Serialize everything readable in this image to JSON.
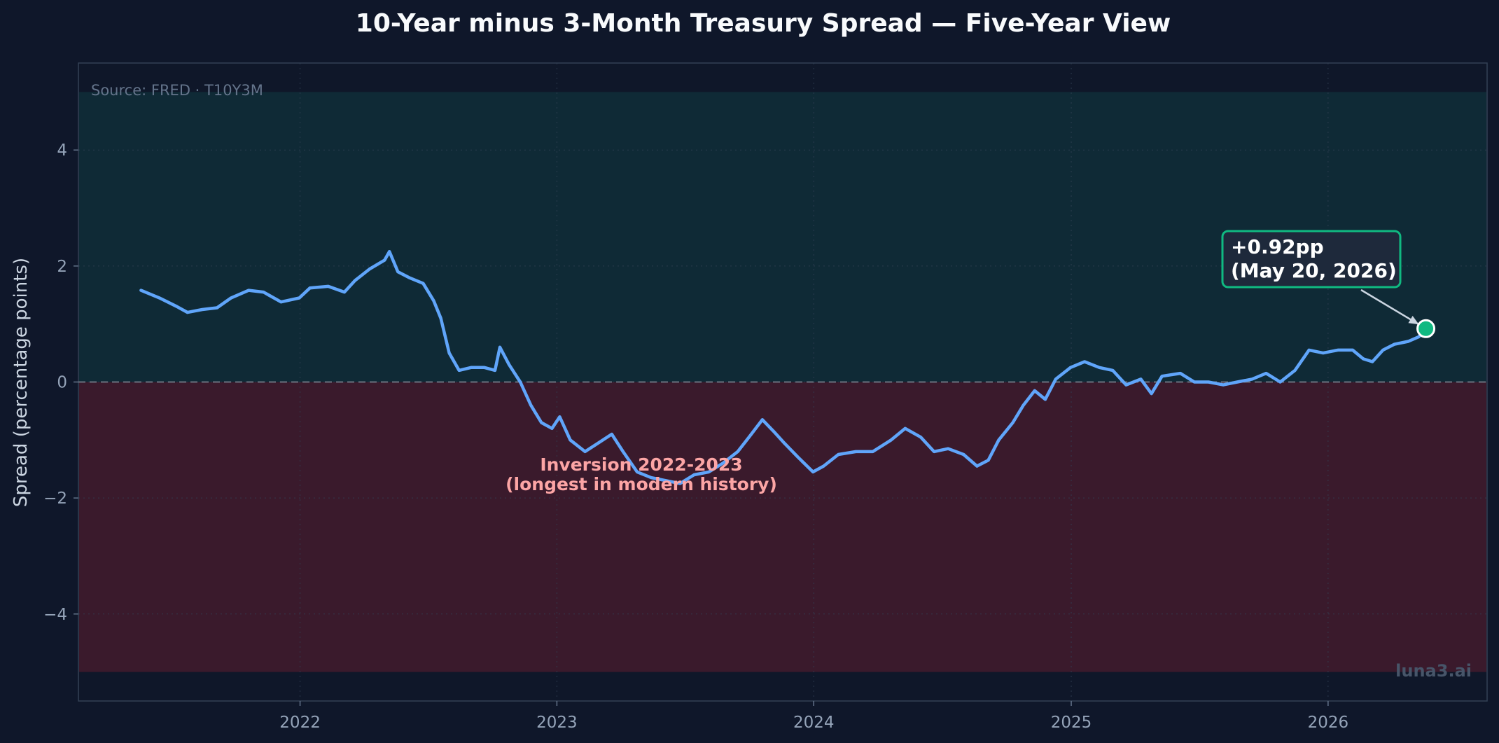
{
  "chart_data": {
    "type": "line",
    "title": "10-Year minus 3-Month Treasury Spread — Five-Year View",
    "xlabel": "",
    "ylabel": "Spread (percentage points)",
    "source": "Source: FRED · T10Y3M",
    "watermark": "luna3.ai",
    "xlim": [
      "2021-02-20",
      "2026-08-15"
    ],
    "ylim": [
      -5.5,
      5.5
    ],
    "x_ticks": [
      "2022",
      "2023",
      "2024",
      "2025",
      "2026"
    ],
    "y_ticks": [
      4,
      2,
      0,
      -2,
      -4
    ],
    "y_tick_labels": [
      "4",
      "2",
      "0",
      "−2",
      "−4"
    ],
    "grid": true,
    "zero_line": 0,
    "bands": [
      {
        "from": 0,
        "to": 5,
        "color": "#0f2a36"
      },
      {
        "from": -5,
        "to": 0,
        "color": "#3a1a2c"
      }
    ],
    "annotations": {
      "inversion_line1": "Inversion 2022-2023",
      "inversion_line2": "(longest in modern history)",
      "inversion_x": "2023-05-01",
      "inversion_y": -1.55,
      "latest_line1": "+0.92pp",
      "latest_line2": "(May 20, 2026)"
    },
    "latest_point": {
      "x": "2026-05-20",
      "y": 0.92,
      "color": "#10b981"
    },
    "series": [
      {
        "color": "#60a5fa",
        "points": [
          [
            "2021-05-20",
            1.58
          ],
          [
            "2021-06-15",
            1.45
          ],
          [
            "2021-07-10",
            1.3
          ],
          [
            "2021-07-25",
            1.2
          ],
          [
            "2021-08-15",
            1.25
          ],
          [
            "2021-09-05",
            1.28
          ],
          [
            "2021-09-25",
            1.45
          ],
          [
            "2021-10-20",
            1.58
          ],
          [
            "2021-11-10",
            1.55
          ],
          [
            "2021-12-05",
            1.38
          ],
          [
            "2021-12-31",
            1.45
          ],
          [
            "2022-01-15",
            1.62
          ],
          [
            "2022-02-10",
            1.65
          ],
          [
            "2022-03-05",
            1.55
          ],
          [
            "2022-03-20",
            1.75
          ],
          [
            "2022-04-10",
            1.95
          ],
          [
            "2022-05-01",
            2.1
          ],
          [
            "2022-05-08",
            2.25
          ],
          [
            "2022-05-20",
            1.9
          ],
          [
            "2022-06-05",
            1.8
          ],
          [
            "2022-06-25",
            1.7
          ],
          [
            "2022-07-10",
            1.4
          ],
          [
            "2022-07-20",
            1.1
          ],
          [
            "2022-08-01",
            0.5
          ],
          [
            "2022-08-15",
            0.2
          ],
          [
            "2022-09-01",
            0.25
          ],
          [
            "2022-09-20",
            0.25
          ],
          [
            "2022-10-05",
            0.2
          ],
          [
            "2022-10-12",
            0.6
          ],
          [
            "2022-10-25",
            0.3
          ],
          [
            "2022-11-10",
            0.0
          ],
          [
            "2022-11-25",
            -0.4
          ],
          [
            "2022-12-10",
            -0.7
          ],
          [
            "2022-12-25",
            -0.8
          ],
          [
            "2023-01-05",
            -0.6
          ],
          [
            "2023-01-20",
            -1.0
          ],
          [
            "2023-02-10",
            -1.2
          ],
          [
            "2023-03-01",
            -1.05
          ],
          [
            "2023-03-20",
            -0.9
          ],
          [
            "2023-04-05",
            -1.2
          ],
          [
            "2023-04-25",
            -1.55
          ],
          [
            "2023-05-15",
            -1.65
          ],
          [
            "2023-06-05",
            -1.7
          ],
          [
            "2023-06-25",
            -1.75
          ],
          [
            "2023-07-15",
            -1.6
          ],
          [
            "2023-08-05",
            -1.55
          ],
          [
            "2023-08-25",
            -1.4
          ],
          [
            "2023-09-15",
            -1.2
          ],
          [
            "2023-10-01",
            -0.95
          ],
          [
            "2023-10-20",
            -0.65
          ],
          [
            "2023-11-05",
            -0.85
          ],
          [
            "2023-11-20",
            -1.05
          ],
          [
            "2023-12-10",
            -1.3
          ],
          [
            "2023-12-31",
            -1.55
          ],
          [
            "2024-01-15",
            -1.45
          ],
          [
            "2024-02-05",
            -1.25
          ],
          [
            "2024-03-01",
            -1.2
          ],
          [
            "2024-03-25",
            -1.2
          ],
          [
            "2024-04-20",
            -1.0
          ],
          [
            "2024-05-10",
            -0.8
          ],
          [
            "2024-06-01",
            -0.95
          ],
          [
            "2024-06-20",
            -1.2
          ],
          [
            "2024-07-10",
            -1.15
          ],
          [
            "2024-08-01",
            -1.25
          ],
          [
            "2024-08-20",
            -1.45
          ],
          [
            "2024-09-05",
            -1.35
          ],
          [
            "2024-09-20",
            -1.0
          ],
          [
            "2024-10-10",
            -0.7
          ],
          [
            "2024-10-25",
            -0.4
          ],
          [
            "2024-11-10",
            -0.15
          ],
          [
            "2024-11-25",
            -0.3
          ],
          [
            "2024-12-10",
            0.05
          ],
          [
            "2024-12-31",
            0.25
          ],
          [
            "2025-01-20",
            0.35
          ],
          [
            "2025-02-10",
            0.25
          ],
          [
            "2025-03-01",
            0.2
          ],
          [
            "2025-03-20",
            -0.05
          ],
          [
            "2025-04-10",
            0.05
          ],
          [
            "2025-04-25",
            -0.2
          ],
          [
            "2025-05-10",
            0.1
          ],
          [
            "2025-06-05",
            0.15
          ],
          [
            "2025-06-25",
            0.0
          ],
          [
            "2025-07-15",
            0.0
          ],
          [
            "2025-08-05",
            -0.05
          ],
          [
            "2025-08-25",
            0.0
          ],
          [
            "2025-09-15",
            0.05
          ],
          [
            "2025-10-05",
            0.15
          ],
          [
            "2025-10-25",
            0.0
          ],
          [
            "2025-11-15",
            0.2
          ],
          [
            "2025-12-05",
            0.55
          ],
          [
            "2025-12-25",
            0.5
          ],
          [
            "2026-01-15",
            0.55
          ],
          [
            "2026-02-05",
            0.55
          ],
          [
            "2026-02-20",
            0.4
          ],
          [
            "2026-03-05",
            0.35
          ],
          [
            "2026-03-20",
            0.55
          ],
          [
            "2026-04-05",
            0.65
          ],
          [
            "2026-04-25",
            0.7
          ],
          [
            "2026-05-10",
            0.78
          ],
          [
            "2026-05-20",
            0.92
          ]
        ]
      }
    ]
  }
}
